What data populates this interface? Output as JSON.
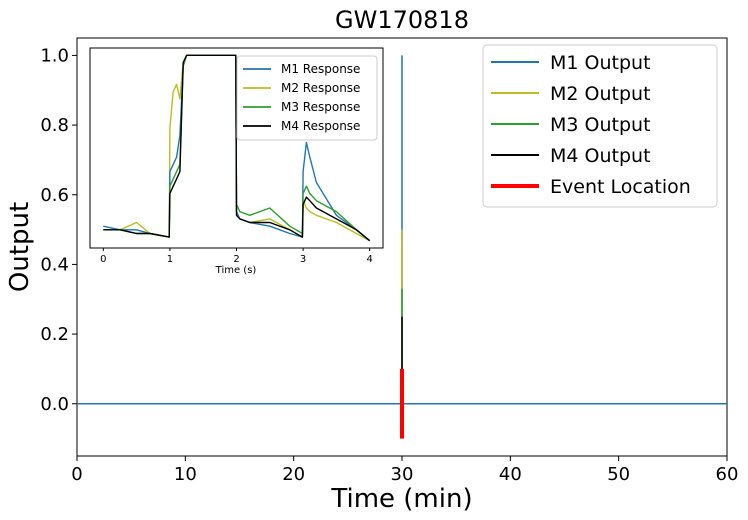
{
  "chart_data": [
    {
      "type": "line",
      "title": "GW170818",
      "xlabel": "Time (min)",
      "ylabel": "Output",
      "xlim": [
        0,
        60
      ],
      "ylim": [
        -0.15,
        1.05
      ],
      "xticks": [
        "0",
        "10",
        "20",
        "30",
        "40",
        "50",
        "60"
      ],
      "xtick_values": [
        0,
        10,
        20,
        30,
        40,
        50,
        60
      ],
      "yticks": [
        "0.0",
        "0.2",
        "0.4",
        "0.6",
        "0.8",
        "1.0"
      ],
      "ytick_values": [
        0.0,
        0.2,
        0.4,
        0.6,
        0.8,
        1.0
      ],
      "grid": false,
      "legend_position": "top-right",
      "series": [
        {
          "name": "M1 Output",
          "color": "#1f77b4",
          "baseline": 0.0,
          "spike_at": 30,
          "spike_peak": 1.0
        },
        {
          "name": "M2 Output",
          "color": "#bcbd22",
          "baseline": 0.0,
          "spike_at": 30,
          "spike_peak": 0.5
        },
        {
          "name": "M3 Output",
          "color": "#2ca02c",
          "baseline": 0.0,
          "spike_at": 30,
          "spike_peak": 0.33
        },
        {
          "name": "M4 Output",
          "color": "#000000",
          "baseline": 0.0,
          "spike_at": 30,
          "spike_peak": 0.25
        },
        {
          "name": "Event Location",
          "color": "#ff0000",
          "x": 30,
          "y_range": [
            -0.1,
            0.1
          ]
        }
      ]
    },
    {
      "type": "line",
      "xlabel": "Time (s)",
      "xlim": [
        -0.2,
        4.2
      ],
      "ylim": [
        0.45,
        1.0
      ],
      "xticks": [
        "0",
        "1",
        "2",
        "3",
        "4"
      ],
      "xtick_values": [
        0,
        1,
        2,
        3,
        4
      ],
      "legend_position": "top-right",
      "x": [
        0,
        0.25,
        0.5,
        0.7,
        0.99,
        1.0,
        1.05,
        1.1,
        1.15,
        1.2,
        1.25,
        1.3,
        1.5,
        1.8,
        1.95,
        1.99,
        2.0,
        2.05,
        2.2,
        2.5,
        2.8,
        2.99,
        3.0,
        3.05,
        3.1,
        3.2,
        3.5,
        3.8,
        4.0
      ],
      "series": [
        {
          "name": "M1 Response",
          "color": "#1f77b4",
          "values": [
            0.51,
            0.5,
            0.5,
            0.49,
            0.48,
            0.66,
            0.68,
            0.7,
            0.76,
            0.95,
            0.98,
            0.98,
            0.98,
            0.98,
            0.98,
            0.98,
            0.55,
            0.53,
            0.52,
            0.51,
            0.49,
            0.48,
            0.66,
            0.74,
            0.7,
            0.63,
            0.54,
            0.5,
            0.47
          ]
        },
        {
          "name": "M2 Response",
          "color": "#bcbd22",
          "values": [
            0.5,
            0.5,
            0.52,
            0.49,
            0.48,
            0.78,
            0.88,
            0.9,
            0.86,
            0.96,
            0.98,
            0.98,
            0.98,
            0.98,
            0.98,
            0.98,
            0.55,
            0.53,
            0.52,
            0.53,
            0.5,
            0.48,
            0.58,
            0.56,
            0.55,
            0.54,
            0.52,
            0.49,
            0.47
          ]
        },
        {
          "name": "M3 Response",
          "color": "#2ca02c",
          "values": [
            0.5,
            0.5,
            0.49,
            0.49,
            0.48,
            0.62,
            0.64,
            0.66,
            0.68,
            0.95,
            0.98,
            0.98,
            0.98,
            0.98,
            0.98,
            0.98,
            0.57,
            0.55,
            0.54,
            0.56,
            0.51,
            0.49,
            0.6,
            0.62,
            0.6,
            0.58,
            0.55,
            0.5,
            0.47
          ]
        },
        {
          "name": "M4 Response",
          "color": "#000000",
          "values": [
            0.5,
            0.5,
            0.49,
            0.49,
            0.48,
            0.6,
            0.62,
            0.64,
            0.66,
            0.96,
            0.98,
            0.98,
            0.98,
            0.98,
            0.98,
            0.98,
            0.54,
            0.53,
            0.52,
            0.52,
            0.5,
            0.48,
            0.57,
            0.59,
            0.58,
            0.56,
            0.53,
            0.5,
            0.47
          ]
        }
      ]
    }
  ]
}
